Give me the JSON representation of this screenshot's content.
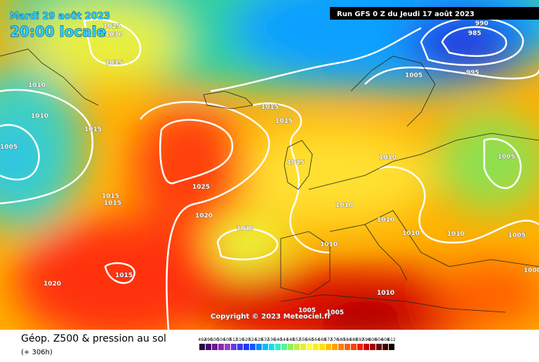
{
  "header": {
    "date": "Mardi 29 août 2023",
    "time": "20:00 locale",
    "run": "Run GFS 0 Z du Jeudi 17 août 2023"
  },
  "copyright": "Copyright © 2023 Meteociel.fr",
  "footer": {
    "title": "Géop. Z500 & pression au sol",
    "lead": "(+ 306h)"
  },
  "isobar_labels": [
    "1025",
    "1030",
    "1035",
    "1010",
    "1010",
    "1015",
    "1005",
    "1015",
    "1015",
    "1020",
    "1015",
    "1025",
    "1020",
    "1015",
    "1015",
    "1015",
    "1010",
    "1010",
    "1010",
    "1010",
    "1010",
    "1010",
    "1010",
    "1005",
    "990",
    "985",
    "995",
    "1005",
    "1005",
    "1000",
    "1010",
    "1005",
    "1005"
  ],
  "colorbar": {
    "ticks": [
      492,
      496,
      500,
      504,
      508,
      512,
      516,
      520,
      524,
      528,
      532,
      536,
      540,
      544,
      548,
      552,
      556,
      560,
      564,
      568,
      572,
      576,
      580,
      584,
      588,
      592,
      596,
      600,
      604,
      608,
      612
    ],
    "colors": [
      "#2a0a3a",
      "#4a0a6a",
      "#6a1a8a",
      "#8a2aaa",
      "#9a3aca",
      "#6a3ae0",
      "#3a3af0",
      "#1a3aff",
      "#0a5aff",
      "#0a8aff",
      "#0abaff",
      "#0ae0f0",
      "#30f0c0",
      "#60f090",
      "#90f060",
      "#c0f040",
      "#e0f030",
      "#ffff30",
      "#fff000",
      "#ffe000",
      "#ffc000",
      "#ffa000",
      "#ff8000",
      "#ff6000",
      "#ff4000",
      "#f02000",
      "#d00000",
      "#a00000",
      "#700000",
      "#400000",
      "#100000"
    ]
  }
}
